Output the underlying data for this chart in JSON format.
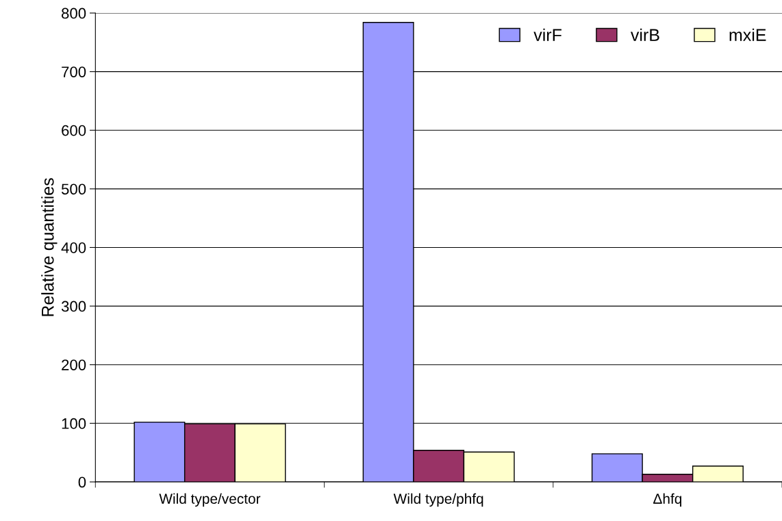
{
  "chart_data": {
    "type": "bar",
    "ylabel": "Relative quantities",
    "categories": [
      "Wild type/vector",
      "Wild type/phfq",
      "Δhfq"
    ],
    "series": [
      {
        "name": "virF",
        "color": "#9999ff",
        "values": [
          102,
          784,
          48
        ]
      },
      {
        "name": "virB",
        "color": "#993366",
        "values": [
          99,
          54,
          13
        ]
      },
      {
        "name": "mxiE",
        "color": "#ffffcc",
        "values": [
          99,
          51,
          27
        ]
      }
    ],
    "ylim": [
      0,
      800
    ],
    "yticks": [
      0,
      100,
      200,
      300,
      400,
      500,
      600,
      700,
      800
    ],
    "grid": "y",
    "legend": "top right"
  }
}
